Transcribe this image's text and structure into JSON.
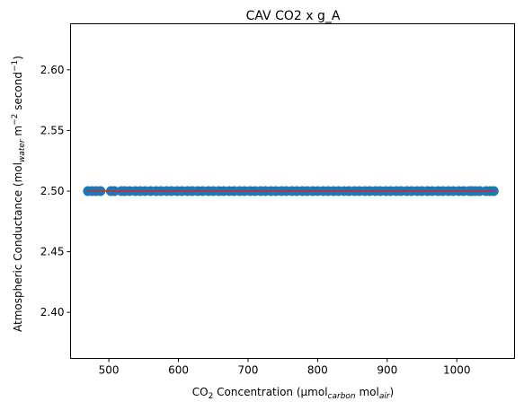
{
  "chart_data": {
    "type": "scatter",
    "title": "CAV CO2 x g_A",
    "xlabel": {
      "main": "CO",
      "sub": "2",
      "mid": " Concentration (µmol",
      "sub2": "carbon",
      "mid2": " mol",
      "sub3": "air",
      "end": ")"
    },
    "ylabel": {
      "main": "Atmospheric Conductance (mol",
      "sub": "water",
      "mid": " m",
      "sup": "−2",
      "mid2": " second",
      "sup2": "−1",
      "end": ")"
    },
    "xlim": [
      445,
      1083
    ],
    "ylim": [
      2.362,
      2.638
    ],
    "xticks": [
      500,
      600,
      700,
      800,
      900,
      1000
    ],
    "yticks": [
      "2.40",
      "2.45",
      "2.50",
      "2.55",
      "2.60"
    ],
    "ytick_values": [
      2.4,
      2.45,
      2.5,
      2.55,
      2.6
    ],
    "grid": false,
    "series": [
      {
        "kind": "scatter",
        "color": "#1f77b4",
        "x": [
          470,
          476,
          482,
          488,
          503,
          508,
          518,
          523,
          530,
          538,
          545,
          552,
          560,
          568,
          575,
          583,
          590,
          598,
          605,
          613,
          620,
          628,
          635,
          643,
          650,
          658,
          665,
          673,
          680,
          688,
          695,
          703,
          710,
          718,
          725,
          733,
          740,
          748,
          755,
          763,
          770,
          778,
          785,
          793,
          800,
          808,
          815,
          823,
          830,
          838,
          845,
          853,
          860,
          868,
          875,
          883,
          890,
          898,
          905,
          913,
          920,
          928,
          935,
          943,
          950,
          958,
          965,
          973,
          980,
          988,
          995,
          1003,
          1010,
          1018,
          1022,
          1027,
          1033,
          1042,
          1048,
          1053
        ],
        "y_constant": 2.5
      },
      {
        "kind": "line",
        "color": "#d62728",
        "x": [
          470,
          1053
        ],
        "y": [
          2.5,
          2.5
        ]
      }
    ]
  }
}
